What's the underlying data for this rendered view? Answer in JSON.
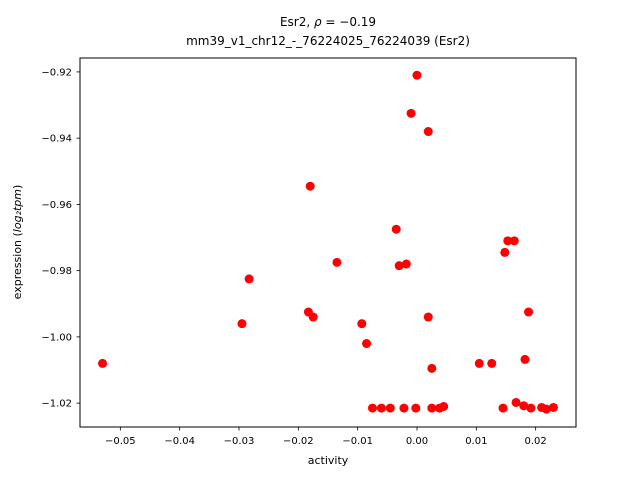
{
  "figure": {
    "title_prefix": "Esr2, ",
    "title_rho": "ρ",
    "title_rest": " = −0.19",
    "subtitle": "mm39_v1_chr12_-_76224025_76224039 (Esr2)",
    "xlabel": "activity",
    "ylabel_prefix": "expression (",
    "ylabel_math": "log₂tpm",
    "ylabel_suffix": ")"
  },
  "chart_data": {
    "type": "scatter",
    "title": "Esr2, ρ = −0.19",
    "subtitle": "mm39_v1_chr12_-_76224025_76224039 (Esr2)",
    "xlabel": "activity",
    "ylabel": "expression (log2 tpm)",
    "marker_color": "#ff0000",
    "marker_radius": 4.5,
    "grid": false,
    "legend": "none",
    "xlim": [
      -0.0568,
      0.0268
    ],
    "ylim": [
      -1.0272,
      -0.9158
    ],
    "x_ticks": [
      -0.05,
      -0.04,
      -0.03,
      -0.02,
      -0.01,
      0.0,
      0.01,
      0.02
    ],
    "y_ticks": [
      -0.92,
      -0.94,
      -0.96,
      -0.98,
      -1.0,
      -1.02
    ],
    "points": [
      [
        -0.053,
        -1.008
      ],
      [
        -0.0295,
        -0.996
      ],
      [
        -0.0283,
        -0.9825
      ],
      [
        -0.018,
        -0.9545
      ],
      [
        -0.0183,
        -0.9925
      ],
      [
        -0.0175,
        -0.994
      ],
      [
        -0.0135,
        -0.9775
      ],
      [
        -0.0093,
        -0.996
      ],
      [
        -0.0085,
        -1.002
      ],
      [
        -0.0075,
        -1.0215
      ],
      [
        -0.006,
        -1.0215
      ],
      [
        -0.0045,
        -1.0215
      ],
      [
        -0.0035,
        -0.9675
      ],
      [
        -0.003,
        -0.9785
      ],
      [
        -0.0018,
        -0.978
      ],
      [
        -0.0022,
        -1.0215
      ],
      [
        -0.001,
        -0.9325
      ],
      [
        0.0,
        -0.921
      ],
      [
        -0.0002,
        -1.0215
      ],
      [
        0.0019,
        -0.938
      ],
      [
        0.0019,
        -0.994
      ],
      [
        0.0025,
        -1.0095
      ],
      [
        0.0025,
        -1.0215
      ],
      [
        0.0038,
        -1.0215
      ],
      [
        0.0045,
        -1.021
      ],
      [
        0.0105,
        -1.008
      ],
      [
        0.0126,
        -1.008
      ],
      [
        0.0148,
        -0.9745
      ],
      [
        0.0153,
        -0.971
      ],
      [
        0.0164,
        -0.971
      ],
      [
        0.0145,
        -1.0215
      ],
      [
        0.0167,
        -1.0198
      ],
      [
        0.018,
        -1.0208
      ],
      [
        0.0182,
        -1.0068
      ],
      [
        0.0188,
        -0.9925
      ],
      [
        0.0192,
        -1.0215
      ],
      [
        0.021,
        -1.0213
      ],
      [
        0.0218,
        -1.0218
      ],
      [
        0.023,
        -1.0213
      ]
    ]
  }
}
